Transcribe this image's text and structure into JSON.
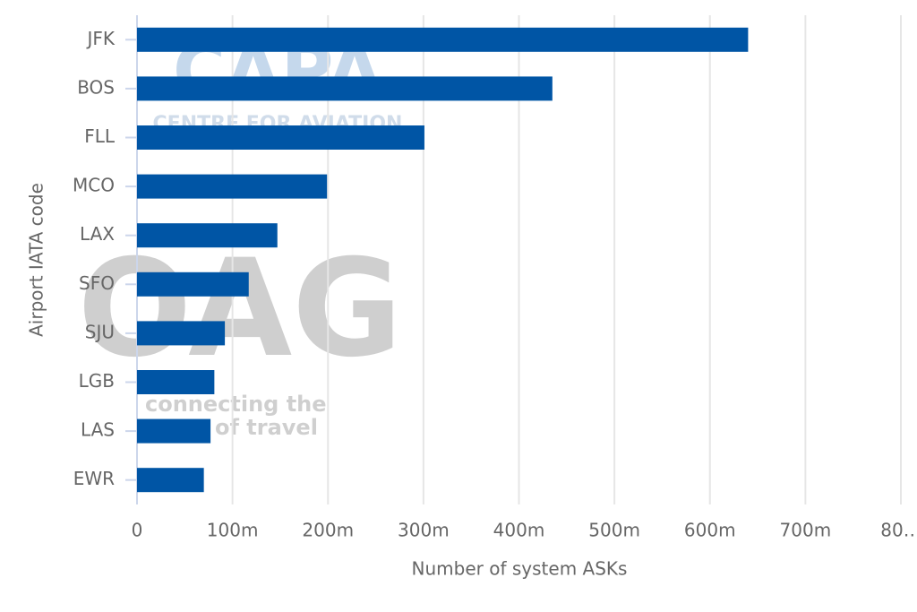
{
  "chart_data": {
    "type": "barh",
    "categories": [
      "JFK",
      "BOS",
      "FLL",
      "MCO",
      "LAX",
      "SFO",
      "SJU",
      "LGB",
      "LAS",
      "EWR"
    ],
    "values": [
      640000000,
      435000000,
      301000000,
      199000000,
      147000000,
      117000000,
      92000000,
      81000000,
      77000000,
      70000000
    ],
    "color": "#0055a5",
    "xlabel": "Number of system ASKs",
    "ylabel": "Airport IATA code",
    "xlim": [
      0,
      800000000
    ],
    "xticks": [
      0,
      {
        "value": 100000000,
        "label": "100m"
      },
      {
        "value": 200000000,
        "label": "200m"
      },
      {
        "value": 300000000,
        "label": "300m"
      },
      {
        "value": 400000000,
        "label": "400m"
      },
      {
        "value": 500000000,
        "label": "500m"
      },
      {
        "value": 600000000,
        "label": "600m"
      },
      {
        "value": 700000000,
        "label": "700m"
      },
      {
        "value": 800000000,
        "label": "80…"
      }
    ],
    "grid": true,
    "watermarks": [
      "CAPA",
      "CENTRE FOR AVIATION",
      "OAG",
      "connecting the",
      "of travel"
    ]
  }
}
